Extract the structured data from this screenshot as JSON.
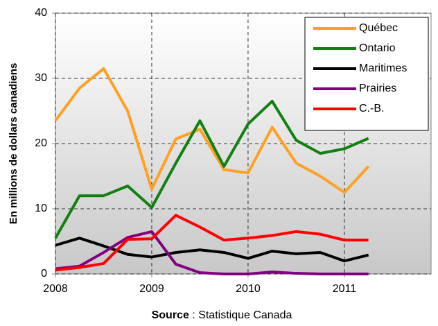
{
  "chart_data": {
    "type": "line",
    "y_label": "En millions de dollars canadiens",
    "source_label": "Source",
    "source_text": ": Statistique Canada",
    "x": [
      2008,
      2008.25,
      2008.5,
      2008.75,
      2009,
      2009.25,
      2009.5,
      2009.75,
      2010,
      2010.25,
      2010.5,
      2010.75,
      2011,
      2011.25
    ],
    "xlim": [
      2008,
      2011.9
    ],
    "xticks": [
      2008,
      2009,
      2010,
      2011
    ],
    "ylim": [
      0,
      40
    ],
    "yticks": [
      0,
      10,
      20,
      30,
      40
    ],
    "grid": true,
    "legend": "top-right",
    "series": [
      {
        "name": "Québec",
        "color": "#ffa020",
        "values": [
          23.5,
          28.5,
          31.5,
          25,
          13,
          20.7,
          22.2,
          16,
          15.5,
          22.5,
          17,
          15,
          12.5,
          16.5
        ]
      },
      {
        "name": "Ontario",
        "color": "#108010",
        "values": [
          5.5,
          12,
          12,
          13.5,
          10.2,
          17,
          23.5,
          16.5,
          23,
          26.5,
          20.5,
          18.5,
          19.2,
          20.8
        ]
      },
      {
        "name": "Maritimes",
        "color": "#000000",
        "values": [
          4.4,
          5.5,
          4.3,
          3,
          2.6,
          3.3,
          3.7,
          3.3,
          2.4,
          3.5,
          3.1,
          3.3,
          2,
          2.9
        ]
      },
      {
        "name": "Prairies",
        "color": "#800080",
        "values": [
          0.8,
          1.2,
          3.3,
          5.6,
          6.5,
          1.5,
          0.2,
          0,
          0,
          0.3,
          0.1,
          0,
          0,
          0
        ]
      },
      {
        "name": "C.-B.",
        "color": "#ff0000",
        "values": [
          0.6,
          1,
          1.6,
          5.3,
          5.4,
          9,
          7.2,
          5.2,
          5.5,
          5.9,
          6.5,
          6.1,
          5.2,
          5.2
        ]
      }
    ]
  }
}
